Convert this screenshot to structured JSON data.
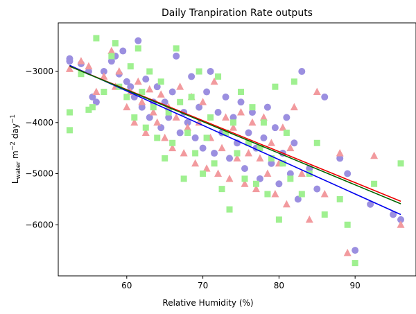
{
  "chart_data": {
    "type": "scatter",
    "title": "Daily Tranpiration Rate outputs",
    "xlabel": "Relative Humidity (%)",
    "ylabel_main": "L",
    "ylabel_sub": "water",
    "ylabel_mid": " m",
    "ylabel_sup1": "−2",
    "ylabel_end": " day",
    "ylabel_sup2": "−1",
    "xlim": [
      51,
      98
    ],
    "ylim": [
      -7000,
      -2050
    ],
    "x_ticks": [
      60,
      70,
      80,
      90
    ],
    "x_tick_labels": [
      "60",
      "70",
      "80",
      "90"
    ],
    "y_ticks": [
      -6000,
      -5000,
      -4000,
      -3000
    ],
    "y_tick_labels": [
      "−6000",
      "−5000",
      "−4000",
      "−3000"
    ],
    "grid": false,
    "series": [
      {
        "marker": "circle",
        "color": "#9b8fe0",
        "points": [
          [
            52.5,
            -2800
          ],
          [
            52.5,
            -2750
          ],
          [
            54,
            -2850
          ],
          [
            55,
            -3000
          ],
          [
            55.5,
            -3500
          ],
          [
            56,
            -3600
          ],
          [
            57,
            -3000
          ],
          [
            58,
            -2800
          ],
          [
            58.5,
            -2700
          ],
          [
            59,
            -3050
          ],
          [
            59.5,
            -2600
          ],
          [
            60,
            -3200
          ],
          [
            60.5,
            -3300
          ],
          [
            61,
            -3500
          ],
          [
            61.5,
            -2400
          ],
          [
            62,
            -3700
          ],
          [
            62.5,
            -3150
          ],
          [
            63,
            -3900
          ],
          [
            63.5,
            -3600
          ],
          [
            64,
            -3300
          ],
          [
            64.5,
            -4100
          ],
          [
            65,
            -3600
          ],
          [
            65.5,
            -3900
          ],
          [
            66,
            -3400
          ],
          [
            66.5,
            -2700
          ],
          [
            67,
            -4200
          ],
          [
            67.5,
            -3800
          ],
          [
            68,
            -4000
          ],
          [
            68.5,
            -3100
          ],
          [
            69,
            -4300
          ],
          [
            69.5,
            -3700
          ],
          [
            70,
            -4500
          ],
          [
            70.5,
            -3400
          ],
          [
            71,
            -3000
          ],
          [
            71.5,
            -4600
          ],
          [
            72,
            -3800
          ],
          [
            72.5,
            -4200
          ],
          [
            73,
            -3500
          ],
          [
            73.5,
            -4700
          ],
          [
            74,
            -3900
          ],
          [
            74.5,
            -4400
          ],
          [
            75,
            -3600
          ],
          [
            75.5,
            -4900
          ],
          [
            76,
            -4200
          ],
          [
            76.5,
            -3800
          ],
          [
            77,
            -4500
          ],
          [
            77.5,
            -5100
          ],
          [
            78,
            -4300
          ],
          [
            78.5,
            -3700
          ],
          [
            79,
            -4800
          ],
          [
            79.5,
            -4100
          ],
          [
            80,
            -5200
          ],
          [
            80.5,
            -4600
          ],
          [
            81,
            -3900
          ],
          [
            81.5,
            -5000
          ],
          [
            82,
            -4400
          ],
          [
            82.5,
            -5500
          ],
          [
            83,
            -3000
          ],
          [
            84,
            -4900
          ],
          [
            85,
            -5300
          ],
          [
            86,
            -3500
          ],
          [
            88,
            -4700
          ],
          [
            89,
            -5000
          ],
          [
            90,
            -6500
          ],
          [
            92,
            -5600
          ],
          [
            95,
            -5800
          ],
          [
            96,
            -5900
          ]
        ]
      },
      {
        "marker": "triangle",
        "color": "#f29a9e",
        "points": [
          [
            52.5,
            -2950
          ],
          [
            54,
            -2800
          ],
          [
            55,
            -2900
          ],
          [
            56,
            -3400
          ],
          [
            57,
            -3100
          ],
          [
            58,
            -2600
          ],
          [
            58.5,
            -3300
          ],
          [
            59,
            -3000
          ],
          [
            60,
            -3700
          ],
          [
            60.5,
            -3400
          ],
          [
            61,
            -4000
          ],
          [
            61.5,
            -3200
          ],
          [
            62,
            -3600
          ],
          [
            62.5,
            -4200
          ],
          [
            63,
            -3350
          ],
          [
            63.5,
            -3800
          ],
          [
            64,
            -4000
          ],
          [
            64.5,
            -3450
          ],
          [
            65,
            -4300
          ],
          [
            65.5,
            -3700
          ],
          [
            66,
            -4500
          ],
          [
            66.5,
            -3900
          ],
          [
            67,
            -3300
          ],
          [
            67.5,
            -4600
          ],
          [
            68,
            -4100
          ],
          [
            68.5,
            -3500
          ],
          [
            69,
            -4800
          ],
          [
            69.5,
            -4000
          ],
          [
            70,
            -3600
          ],
          [
            70.5,
            -4900
          ],
          [
            71,
            -4300
          ],
          [
            71.5,
            -3200
          ],
          [
            72,
            -5000
          ],
          [
            72.5,
            -4500
          ],
          [
            73,
            -3900
          ],
          [
            73.5,
            -5100
          ],
          [
            74,
            -4100
          ],
          [
            74.5,
            -4700
          ],
          [
            75,
            -3800
          ],
          [
            75.5,
            -5200
          ],
          [
            76,
            -4600
          ],
          [
            76.5,
            -4000
          ],
          [
            77,
            -5300
          ],
          [
            77.5,
            -4700
          ],
          [
            78,
            -3900
          ],
          [
            78.5,
            -5000
          ],
          [
            79,
            -4400
          ],
          [
            79.5,
            -5400
          ],
          [
            80,
            -4800
          ],
          [
            80.5,
            -4100
          ],
          [
            81,
            -5600
          ],
          [
            81.5,
            -4500
          ],
          [
            82,
            -3700
          ],
          [
            83,
            -5000
          ],
          [
            84,
            -5900
          ],
          [
            85,
            -3400
          ],
          [
            86,
            -5400
          ],
          [
            88,
            -4600
          ],
          [
            89,
            -6550
          ],
          [
            92.5,
            -4650
          ],
          [
            96,
            -6000
          ]
        ]
      },
      {
        "marker": "square",
        "color": "#9ff090",
        "points": [
          [
            52.5,
            -3800
          ],
          [
            52.5,
            -4150
          ],
          [
            54,
            -3050
          ],
          [
            55,
            -3750
          ],
          [
            55.5,
            -3700
          ],
          [
            56,
            -2350
          ],
          [
            57,
            -3400
          ],
          [
            58,
            -2700
          ],
          [
            58.5,
            -2450
          ],
          [
            59,
            -3300
          ],
          [
            60,
            -3500
          ],
          [
            60.5,
            -2900
          ],
          [
            61,
            -3900
          ],
          [
            61.5,
            -2550
          ],
          [
            62,
            -3400
          ],
          [
            62.5,
            -4100
          ],
          [
            63,
            -3000
          ],
          [
            63.5,
            -3700
          ],
          [
            64,
            -4300
          ],
          [
            64.5,
            -3200
          ],
          [
            65,
            -4700
          ],
          [
            65.5,
            -3800
          ],
          [
            66,
            -4400
          ],
          [
            66.5,
            -2550
          ],
          [
            67,
            -3600
          ],
          [
            67.5,
            -5100
          ],
          [
            68,
            -4200
          ],
          [
            68.5,
            -3500
          ],
          [
            69,
            -4600
          ],
          [
            69.5,
            -3000
          ],
          [
            70,
            -5000
          ],
          [
            70.5,
            -4300
          ],
          [
            71,
            -3900
          ],
          [
            71.5,
            -4800
          ],
          [
            72,
            -3100
          ],
          [
            72.5,
            -5300
          ],
          [
            73,
            -4200
          ],
          [
            73.5,
            -5700
          ],
          [
            74,
            -4000
          ],
          [
            74.5,
            -4600
          ],
          [
            75,
            -3400
          ],
          [
            75.5,
            -5100
          ],
          [
            76,
            -4400
          ],
          [
            76.5,
            -3700
          ],
          [
            77,
            -5200
          ],
          [
            77.5,
            -4500
          ],
          [
            78,
            -4000
          ],
          [
            78.5,
            -5400
          ],
          [
            79,
            -4700
          ],
          [
            79.5,
            -3300
          ],
          [
            80,
            -5900
          ],
          [
            80.5,
            -4800
          ],
          [
            81,
            -4200
          ],
          [
            81.5,
            -5100
          ],
          [
            82,
            -3200
          ],
          [
            83,
            -5400
          ],
          [
            84,
            -5000
          ],
          [
            85,
            -4400
          ],
          [
            86,
            -5800
          ],
          [
            88,
            -5500
          ],
          [
            89,
            -6000
          ],
          [
            90,
            -6750
          ],
          [
            92.5,
            -5200
          ],
          [
            96,
            -4800
          ]
        ]
      }
    ],
    "trend_lines": [
      {
        "color": "#0000ee",
        "x": [
          52.5,
          96
        ],
        "y": [
          -2880,
          -5800
        ]
      },
      {
        "color": "#ee0000",
        "x": [
          52.5,
          96
        ],
        "y": [
          -2900,
          -5540
        ]
      },
      {
        "color": "#006400",
        "x": [
          52.5,
          96
        ],
        "y": [
          -2900,
          -5590
        ]
      }
    ]
  }
}
